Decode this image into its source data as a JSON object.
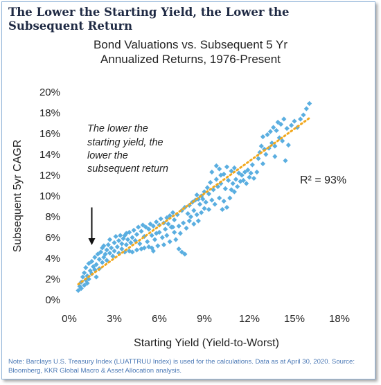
{
  "headline": "The Lower the Starting Yield, the Lower the Subsequent Return",
  "note": "Note: Barclays U.S. Treasury Index (LUATTRUU Index) is used for the calculations. Data as at April 30, 2020. Source: Bloomberg, KKR Global Macro & Asset Allocation analysis.",
  "colors": {
    "points": "#5aaee0",
    "trend": "#f2a81d",
    "headline": "#1f2a44",
    "note": "#4a78b5",
    "frame": "#8fb3d9"
  },
  "chart_data": {
    "type": "scatter",
    "title_lines": [
      "Bond Valuations vs. Subsequent 5 Yr",
      "Annualized Returns, 1976-Present"
    ],
    "xlabel": "Starting Yield (Yield-to-Worst)",
    "ylabel": "Subsequent 5yr CAGR",
    "xlim": [
      0,
      18
    ],
    "ylim": [
      0,
      20
    ],
    "x_ticks": [
      0,
      3,
      6,
      9,
      12,
      15,
      18
    ],
    "y_ticks": [
      0,
      2,
      4,
      6,
      8,
      10,
      12,
      14,
      16,
      18,
      20
    ],
    "x_tick_labels": [
      "0%",
      "3%",
      "6%",
      "9%",
      "12%",
      "15%",
      "18%"
    ],
    "y_tick_labels": [
      "0%",
      "2%",
      "4%",
      "6%",
      "8%",
      "10%",
      "12%",
      "14%",
      "16%",
      "18%",
      "20%"
    ],
    "grid": false,
    "annotation": {
      "lines": [
        "The lower the",
        "starting yield, the",
        "lower the",
        "subsequent return"
      ],
      "arrow_from": [
        1.5,
        8.9
      ],
      "arrow_to": [
        1.5,
        5.6
      ]
    },
    "r_squared_label": "R² = 93%",
    "trendline": {
      "x": [
        0.6,
        16.0
      ],
      "y": [
        1.5,
        17.5
      ],
      "style": "dotted"
    },
    "series": [
      {
        "points": [
          [
            0.6,
            0.9
          ],
          [
            0.7,
            1.3
          ],
          [
            0.8,
            1.1
          ],
          [
            0.8,
            1.7
          ],
          [
            0.9,
            2.2
          ],
          [
            1.0,
            1.4
          ],
          [
            1.0,
            2.6
          ],
          [
            1.1,
            1.9
          ],
          [
            1.1,
            3.1
          ],
          [
            1.2,
            2.3
          ],
          [
            1.3,
            3.5
          ],
          [
            1.3,
            2.0
          ],
          [
            1.4,
            2.8
          ],
          [
            1.5,
            3.7
          ],
          [
            1.5,
            2.5
          ],
          [
            1.6,
            3.2
          ],
          [
            1.7,
            4.1
          ],
          [
            1.7,
            2.9
          ],
          [
            1.8,
            3.4
          ],
          [
            1.9,
            4.4
          ],
          [
            2.0,
            3.0
          ],
          [
            2.0,
            3.9
          ],
          [
            2.1,
            4.6
          ],
          [
            2.2,
            3.6
          ],
          [
            2.3,
            4.1
          ],
          [
            2.3,
            5.2
          ],
          [
            2.4,
            4.4
          ],
          [
            2.5,
            4.8
          ],
          [
            2.5,
            3.8
          ],
          [
            2.6,
            5.3
          ],
          [
            2.7,
            4.5
          ],
          [
            2.7,
            5.8
          ],
          [
            2.8,
            5.0
          ],
          [
            2.9,
            4.2
          ],
          [
            3.0,
            5.5
          ],
          [
            3.0,
            4.7
          ],
          [
            3.1,
            6.1
          ],
          [
            3.2,
            5.1
          ],
          [
            3.3,
            4.5
          ],
          [
            3.3,
            5.7
          ],
          [
            3.4,
            6.2
          ],
          [
            3.5,
            4.9
          ],
          [
            3.5,
            5.4
          ],
          [
            3.6,
            5.9
          ],
          [
            3.7,
            4.6
          ],
          [
            3.8,
            6.4
          ],
          [
            3.8,
            5.3
          ],
          [
            3.9,
            5.8
          ],
          [
            4.0,
            4.7
          ],
          [
            4.0,
            6.5
          ],
          [
            4.1,
            5.5
          ],
          [
            4.2,
            6.0
          ],
          [
            4.2,
            4.6
          ],
          [
            4.3,
            6.7
          ],
          [
            4.4,
            5.7
          ],
          [
            4.5,
            4.8
          ],
          [
            4.5,
            6.3
          ],
          [
            4.6,
            7.0
          ],
          [
            4.7,
            5.4
          ],
          [
            4.8,
            4.9
          ],
          [
            4.8,
            6.6
          ],
          [
            4.9,
            7.2
          ],
          [
            5.0,
            5.0
          ],
          [
            5.0,
            6.1
          ],
          [
            5.1,
            7.0
          ],
          [
            5.2,
            5.6
          ],
          [
            5.3,
            6.8
          ],
          [
            5.3,
            5.1
          ],
          [
            5.4,
            7.3
          ],
          [
            5.5,
            6.2
          ],
          [
            5.5,
            5.0
          ],
          [
            5.6,
            7.1
          ],
          [
            5.7,
            5.8
          ],
          [
            5.8,
            7.5
          ],
          [
            5.8,
            6.4
          ],
          [
            5.9,
            5.2
          ],
          [
            6.0,
            7.2
          ],
          [
            6.0,
            6.5
          ],
          [
            6.1,
            7.8
          ],
          [
            6.2,
            6.0
          ],
          [
            6.3,
            7.4
          ],
          [
            6.3,
            5.3
          ],
          [
            6.4,
            6.8
          ],
          [
            6.5,
            7.9
          ],
          [
            6.5,
            6.2
          ],
          [
            6.6,
            7.3
          ],
          [
            6.7,
            8.1
          ],
          [
            6.7,
            5.6
          ],
          [
            6.8,
            7.0
          ],
          [
            6.9,
            8.4
          ],
          [
            7.0,
            6.5
          ],
          [
            7.0,
            7.7
          ],
          [
            7.1,
            5.8
          ],
          [
            7.2,
            8.2
          ],
          [
            7.3,
            7.1
          ],
          [
            7.3,
            4.9
          ],
          [
            7.4,
            6.4
          ],
          [
            7.5,
            8.6
          ],
          [
            7.5,
            4.6
          ],
          [
            7.6,
            7.4
          ],
          [
            7.7,
            4.4
          ],
          [
            7.7,
            8.9
          ],
          [
            7.8,
            6.9
          ],
          [
            7.9,
            8.3
          ],
          [
            8.0,
            7.6
          ],
          [
            8.0,
            9.1
          ],
          [
            8.1,
            8.0
          ],
          [
            8.2,
            9.4
          ],
          [
            8.3,
            7.3
          ],
          [
            8.3,
            8.6
          ],
          [
            8.4,
            9.6
          ],
          [
            8.5,
            8.2
          ],
          [
            8.5,
            10.1
          ],
          [
            8.6,
            7.6
          ],
          [
            8.7,
            9.2
          ],
          [
            8.8,
            10.0
          ],
          [
            8.8,
            8.4
          ],
          [
            8.9,
            9.7
          ],
          [
            9.0,
            10.4
          ],
          [
            9.0,
            8.8
          ],
          [
            9.1,
            9.4
          ],
          [
            9.2,
            10.8
          ],
          [
            9.3,
            8.7
          ],
          [
            9.3,
            10.2
          ],
          [
            9.4,
            11.3
          ],
          [
            9.5,
            9.6
          ],
          [
            9.5,
            12.3
          ],
          [
            9.6,
            10.6
          ],
          [
            9.7,
            9.2
          ],
          [
            9.8,
            11.6
          ],
          [
            9.8,
            12.9
          ],
          [
            9.9,
            10.9
          ],
          [
            10.0,
            9.8
          ],
          [
            10.0,
            12.6
          ],
          [
            10.1,
            11.2
          ],
          [
            10.2,
            8.7
          ],
          [
            10.3,
            12.1
          ],
          [
            10.3,
            9.5
          ],
          [
            10.4,
            10.7
          ],
          [
            10.5,
            12.8
          ],
          [
            10.5,
            8.9
          ],
          [
            10.6,
            11.5
          ],
          [
            10.7,
            9.8
          ],
          [
            10.8,
            12.4
          ],
          [
            10.8,
            10.6
          ],
          [
            10.9,
            11.2
          ],
          [
            11.0,
            12.7
          ],
          [
            11.1,
            11.6
          ],
          [
            11.2,
            10.9
          ],
          [
            11.3,
            12.2
          ],
          [
            11.4,
            11.4
          ],
          [
            11.5,
            12.0
          ],
          [
            11.6,
            11.5
          ],
          [
            11.7,
            12.3
          ],
          [
            11.8,
            11.2
          ],
          [
            11.9,
            12.5
          ],
          [
            12.0,
            11.8
          ],
          [
            12.1,
            12.2
          ],
          [
            12.2,
            13.0
          ],
          [
            12.3,
            11.7
          ],
          [
            12.5,
            12.3
          ],
          [
            12.6,
            13.6
          ],
          [
            12.7,
            14.2
          ],
          [
            12.8,
            14.8
          ],
          [
            12.9,
            15.7
          ],
          [
            13.0,
            14.5
          ],
          [
            13.1,
            14.0
          ],
          [
            13.2,
            15.9
          ],
          [
            13.3,
            14.6
          ],
          [
            13.4,
            16.2
          ],
          [
            13.5,
            15.1
          ],
          [
            13.6,
            16.6
          ],
          [
            13.7,
            14.8
          ],
          [
            13.8,
            16.3
          ],
          [
            13.9,
            17.1
          ],
          [
            14.0,
            15.6
          ],
          [
            14.1,
            16.9
          ],
          [
            14.2,
            15.3
          ],
          [
            14.3,
            17.4
          ],
          [
            14.5,
            16.5
          ],
          [
            14.6,
            14.9
          ],
          [
            14.8,
            16.8
          ],
          [
            15.0,
            17.2
          ],
          [
            15.2,
            16.6
          ],
          [
            15.4,
            17.4
          ],
          [
            15.6,
            17.8
          ],
          [
            15.8,
            18.4
          ],
          [
            16.0,
            18.9
          ],
          [
            13.7,
            13.8
          ],
          [
            14.4,
            13.4
          ],
          [
            12.9,
            13.1
          ],
          [
            11.0,
            10.4
          ],
          [
            10.1,
            12.0
          ],
          [
            8.6,
            9.7
          ],
          [
            6.9,
            7.0
          ],
          [
            5.6,
            4.7
          ],
          [
            3.7,
            6.2
          ],
          [
            2.2,
            5.0
          ],
          [
            1.8,
            2.2
          ],
          [
            1.2,
            1.6
          ]
        ]
      }
    ]
  }
}
